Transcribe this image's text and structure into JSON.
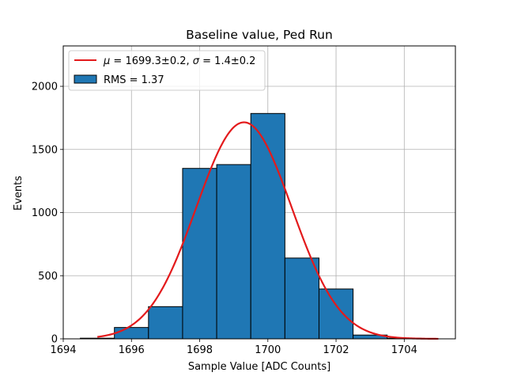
{
  "chart_data": {
    "type": "bar",
    "title": "Baseline value, Ped Run",
    "xlabel": "Sample Value [ADC Counts]",
    "ylabel": "Events",
    "xlim": [
      1694,
      1705.5
    ],
    "ylim": [
      0,
      2320
    ],
    "xticks": [
      1694,
      1696,
      1698,
      1700,
      1702,
      1704
    ],
    "yticks": [
      0,
      500,
      1000,
      1500,
      2000
    ],
    "grid": true,
    "legend_position": "top-left",
    "bar_color": "#1f77b4",
    "fit_color": "#e31a1c",
    "bins": [
      {
        "x0": 1694.5,
        "x1": 1695.5,
        "value": 5
      },
      {
        "x0": 1695.5,
        "x1": 1696.5,
        "value": 90
      },
      {
        "x0": 1696.5,
        "x1": 1697.5,
        "value": 255
      },
      {
        "x0": 1697.5,
        "x1": 1698.5,
        "value": 1350
      },
      {
        "x0": 1698.5,
        "x1": 1699.5,
        "value": 1380
      },
      {
        "x0": 1699.5,
        "x1": 1700.5,
        "value": 1785
      },
      {
        "x0": 1700.5,
        "x1": 1701.5,
        "value": 640
      },
      {
        "x0": 1701.5,
        "x1": 1702.5,
        "value": 395
      },
      {
        "x0": 1702.5,
        "x1": 1703.5,
        "value": 30
      },
      {
        "x0": 1703.5,
        "x1": 1704.5,
        "value": 5
      }
    ],
    "fit": {
      "function": "gaussian",
      "mu": 1699.3,
      "sigma": 1.4,
      "amplitude": 1715,
      "x_range": [
        1695,
        1705
      ]
    },
    "legend": {
      "fit_label_mu": "μ",
      "fit_label_text_1": " = 1699.3±0.2, ",
      "fit_label_sigma": "σ",
      "fit_label_text_2": " = 1.4±0.2",
      "hist_label": "RMS = 1.37"
    }
  }
}
